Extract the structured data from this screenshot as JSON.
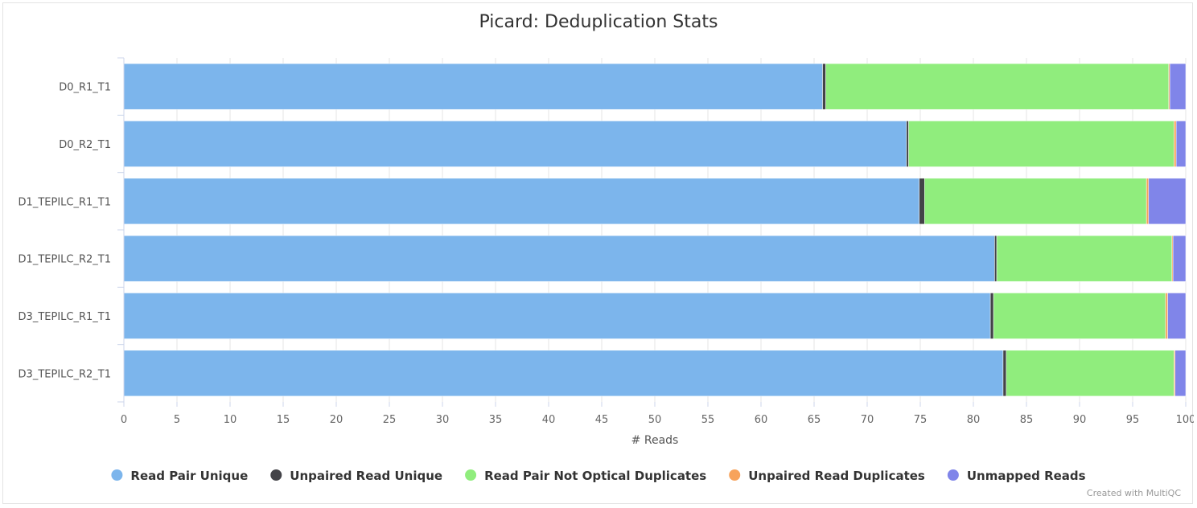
{
  "chart_data": {
    "type": "bar",
    "orientation": "horizontal",
    "stacked": true,
    "title": "Picard: Deduplication Stats",
    "xlabel": "# Reads",
    "xlim": [
      0,
      100
    ],
    "xticks": [
      0,
      5,
      10,
      15,
      20,
      25,
      30,
      35,
      40,
      45,
      50,
      55,
      60,
      65,
      70,
      75,
      80,
      85,
      90,
      95,
      100
    ],
    "grid": true,
    "legend_position": "bottom",
    "categories": [
      "D0_R1_T1",
      "D0_R2_T1",
      "D1_TEPILC_R1_T1",
      "D1_TEPILC_R2_T1",
      "D3_TEPILC_R1_T1",
      "D3_TEPILC_R2_T1"
    ],
    "series": [
      {
        "name": "Read Pair Unique",
        "color": "#7cb5ec",
        "values": [
          65.8,
          73.7,
          74.9,
          82.0,
          81.6,
          82.8
        ]
      },
      {
        "name": "Unpaired Read Unique",
        "color": "#434348",
        "values": [
          0.3,
          0.2,
          0.5,
          0.2,
          0.3,
          0.3
        ]
      },
      {
        "name": "Read Pair Not Optical Duplicates",
        "color": "#90ed7d",
        "values": [
          32.3,
          25.0,
          20.9,
          16.5,
          16.2,
          15.8
        ]
      },
      {
        "name": "Unpaired Read Duplicates",
        "color": "#f7a35c",
        "values": [
          0.1,
          0.2,
          0.2,
          0.1,
          0.2,
          0.1
        ]
      },
      {
        "name": "Unmapped Reads",
        "color": "#8085e9",
        "values": [
          1.5,
          0.9,
          3.5,
          1.2,
          1.7,
          1.0
        ]
      }
    ]
  },
  "credit": "Created with MultiQC"
}
